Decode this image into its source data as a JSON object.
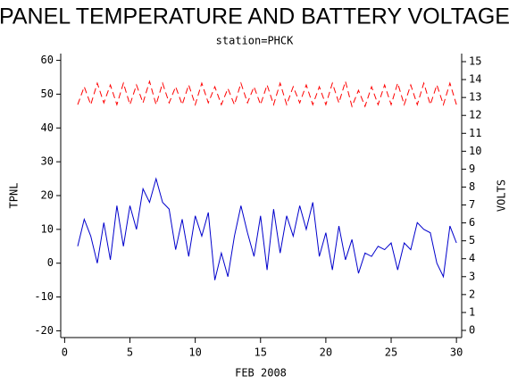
{
  "chart_data": {
    "type": "line",
    "title": "PANEL TEMPERATURE AND BATTERY VOLTAGE",
    "subtitle": "station=PHCK",
    "xlabel": "FEB 2008",
    "ylabel": "TPNL",
    "y2label": "VOLTS",
    "x": [
      1,
      1.5,
      2,
      2.5,
      3,
      3.5,
      4,
      4.5,
      5,
      5.5,
      6,
      6.5,
      7,
      7.5,
      8,
      8.5,
      9,
      9.5,
      10,
      10.5,
      11,
      11.5,
      12,
      12.5,
      13,
      13.5,
      14,
      14.5,
      15,
      15.5,
      16,
      16.5,
      17,
      17.5,
      18,
      18.5,
      19,
      19.5,
      20,
      20.5,
      21,
      21.5,
      22,
      22.5,
      23,
      23.5,
      24,
      24.5,
      25,
      25.5,
      26,
      26.5,
      27,
      27.5,
      28,
      28.5,
      29,
      29.5,
      30
    ],
    "series": [
      {
        "name": "TPNL",
        "color": "#0000cc",
        "axis": "y",
        "dashed": false,
        "values": [
          5,
          13,
          8,
          0,
          12,
          1,
          17,
          5,
          17,
          10,
          22,
          18,
          25,
          18,
          16,
          4,
          13,
          2,
          14,
          8,
          15,
          -5,
          3,
          -4,
          8,
          17,
          9,
          2,
          14,
          -2,
          16,
          3,
          14,
          8,
          17,
          10,
          18,
          2,
          9,
          -2,
          11,
          1,
          7,
          -3,
          3,
          2,
          5,
          4,
          6,
          -2,
          6,
          4,
          12,
          10,
          9,
          0,
          -4,
          11,
          6
        ]
      },
      {
        "name": "VOLTS",
        "color": "#ff0000",
        "axis": "y2",
        "dashed": true,
        "values": [
          12.6,
          13.6,
          12.6,
          13.8,
          12.7,
          13.7,
          12.6,
          13.8,
          12.6,
          13.7,
          12.7,
          13.9,
          12.6,
          13.8,
          12.7,
          13.6,
          12.6,
          13.7,
          12.6,
          13.8,
          12.7,
          13.6,
          12.6,
          13.5,
          12.6,
          13.8,
          12.7,
          13.6,
          12.6,
          13.7,
          12.6,
          13.8,
          12.6,
          13.6,
          12.7,
          13.7,
          12.6,
          13.6,
          12.6,
          13.8,
          12.7,
          13.9,
          12.5,
          13.4,
          12.5,
          13.6,
          12.6,
          13.7,
          12.6,
          13.8,
          12.6,
          13.7,
          12.6,
          13.8,
          12.6,
          13.7,
          12.6,
          13.8,
          12.6
        ]
      }
    ],
    "xlim": [
      -0.3,
      30.4
    ],
    "xticks": [
      0,
      5,
      10,
      15,
      20,
      25,
      30
    ],
    "ylim": [
      -22,
      62
    ],
    "yticks": [
      -20,
      -10,
      0,
      10,
      20,
      30,
      40,
      50,
      60
    ],
    "y2lim": [
      -0.4,
      15.45
    ],
    "y2ticks": [
      0,
      1,
      2,
      3,
      4,
      5,
      6,
      7,
      8,
      9,
      10,
      11,
      12,
      13,
      14,
      15
    ]
  }
}
